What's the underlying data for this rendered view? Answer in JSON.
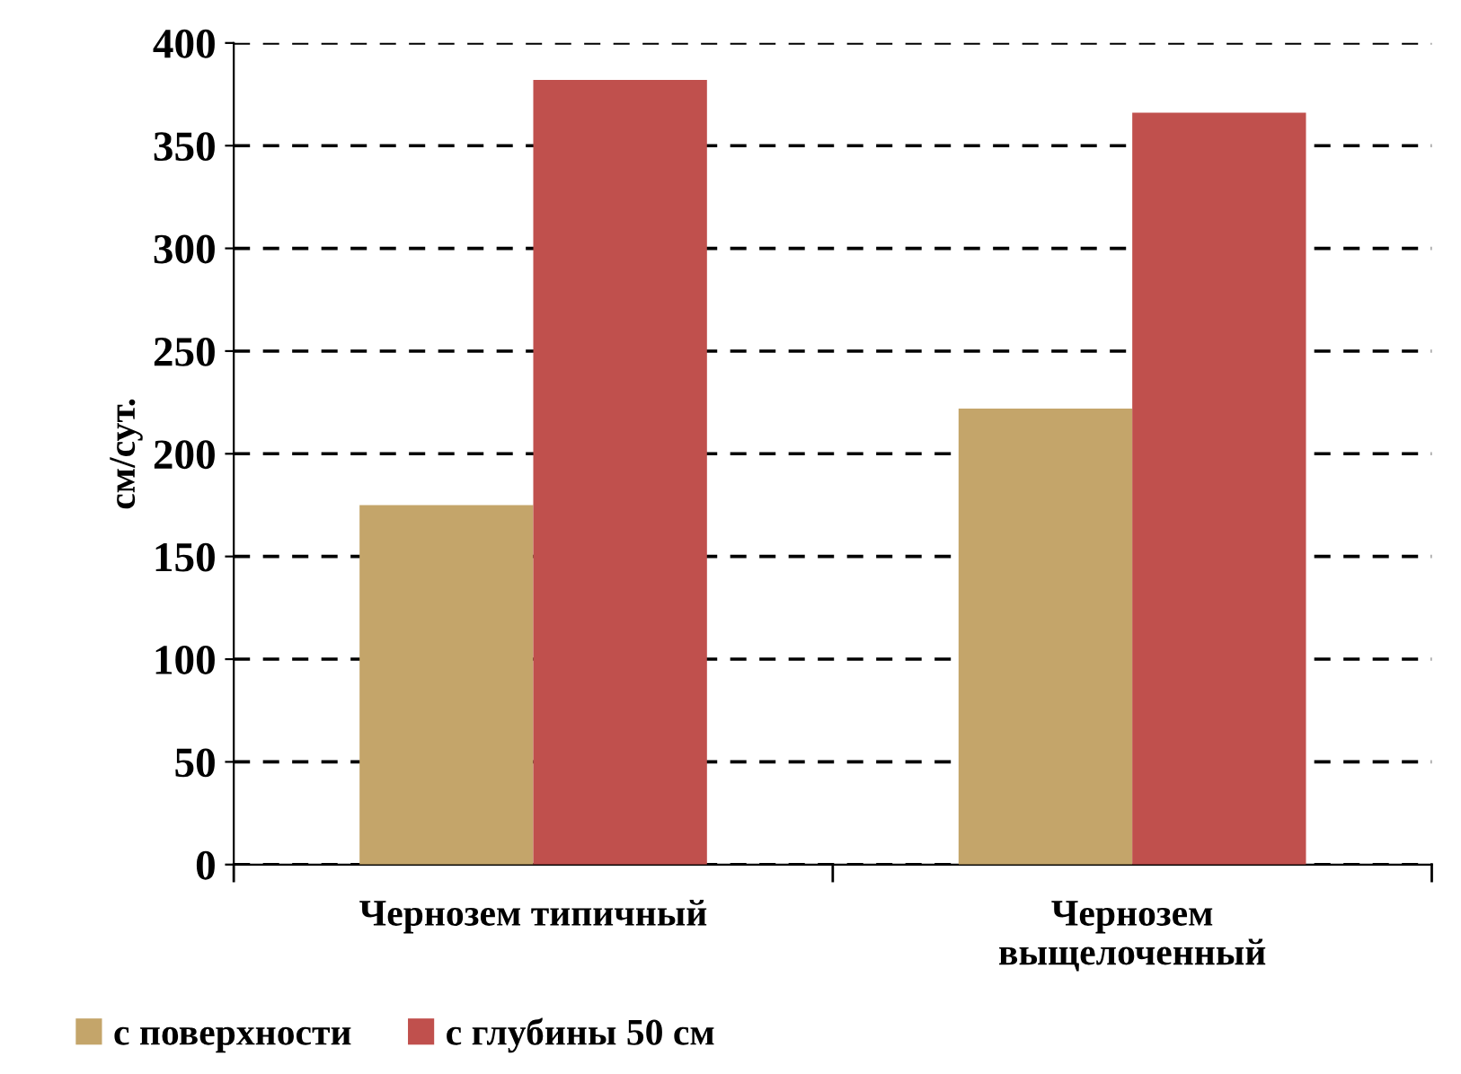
{
  "chart_data": {
    "type": "bar",
    "ylabel": "см/сут.",
    "categories": [
      "Чернозем типичный",
      "Чернозем\nвыщелоченный"
    ],
    "series": [
      {
        "name": "с поверхности",
        "color": "#c4a56a",
        "values": [
          175,
          222
        ]
      },
      {
        "name": "с глубины 50 см",
        "color": "#c0504d",
        "values": [
          382,
          366
        ]
      }
    ],
    "ylim": [
      0,
      400
    ],
    "yticks": [
      0,
      50,
      100,
      150,
      200,
      250,
      300,
      350,
      400
    ],
    "grid": "y",
    "line_style": "dashed",
    "legend": "bottom left"
  }
}
